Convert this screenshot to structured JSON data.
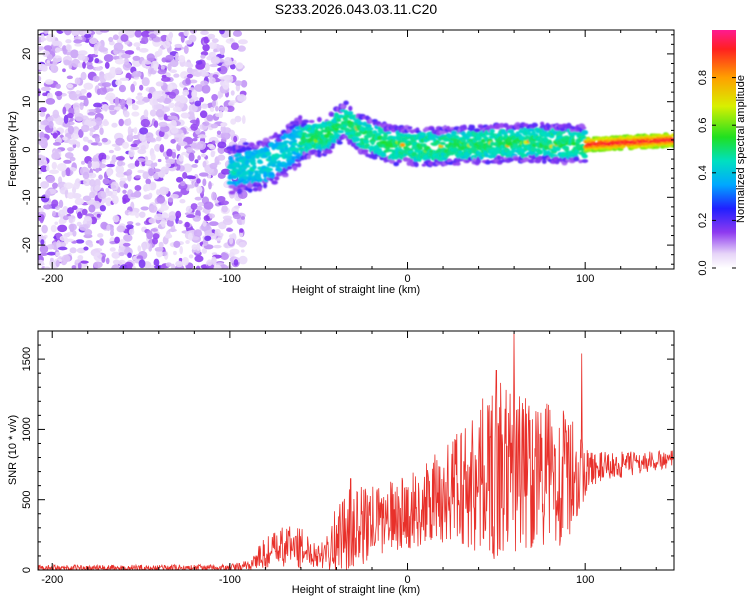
{
  "title": "S233.2026.043.03.11.C20",
  "chart_data": [
    {
      "type": "heatmap",
      "xlabel": "Height of straight line (km)",
      "ylabel": "Frequency (Hz)",
      "xlim": [
        -208,
        150
      ],
      "ylim": [
        -25,
        25
      ],
      "xticks": [
        -200,
        -100,
        0,
        100
      ],
      "yticks": [
        -20,
        -10,
        0,
        10,
        20
      ],
      "ridge_center_hz": [
        {
          "x": -95,
          "y": -4
        },
        {
          "x": -80,
          "y": -3
        },
        {
          "x": -70,
          "y": -1
        },
        {
          "x": -60,
          "y": 2
        },
        {
          "x": -45,
          "y": 3
        },
        {
          "x": -35,
          "y": 6
        },
        {
          "x": -25,
          "y": 3
        },
        {
          "x": -10,
          "y": 1
        },
        {
          "x": 10,
          "y": 0.5
        },
        {
          "x": 40,
          "y": 1
        },
        {
          "x": 70,
          "y": 1.5
        },
        {
          "x": 100,
          "y": 1
        },
        {
          "x": 150,
          "y": 2
        }
      ],
      "colorbar": {
        "label": "Normalized spectral amplitude",
        "range": [
          0,
          1
        ],
        "ticks": [
          "0.0",
          "0.2",
          "0.4",
          "0.6",
          "0.8"
        ]
      }
    },
    {
      "type": "line",
      "xlabel": "Height of straight line (km)",
      "ylabel": "SNR (10 * v/v)",
      "xlim": [
        -208,
        150
      ],
      "ylim": [
        0,
        1700
      ],
      "xticks": [
        -200,
        -100,
        0,
        100
      ],
      "yticks": [
        0,
        500,
        1000,
        1500
      ],
      "color": "#e8302a",
      "envelope": [
        {
          "x": -208,
          "base": 10,
          "spread": 25
        },
        {
          "x": -100,
          "base": 15,
          "spread": 25
        },
        {
          "x": -90,
          "base": 30,
          "spread": 40
        },
        {
          "x": -80,
          "base": 120,
          "spread": 120
        },
        {
          "x": -65,
          "base": 180,
          "spread": 170
        },
        {
          "x": -50,
          "base": 110,
          "spread": 90
        },
        {
          "x": -35,
          "base": 270,
          "spread": 300
        },
        {
          "x": -10,
          "base": 380,
          "spread": 250
        },
        {
          "x": 10,
          "base": 450,
          "spread": 300
        },
        {
          "x": 30,
          "base": 600,
          "spread": 450
        },
        {
          "x": 50,
          "base": 700,
          "spread": 650
        },
        {
          "x": 70,
          "base": 700,
          "spread": 550
        },
        {
          "x": 90,
          "base": 650,
          "spread": 500
        },
        {
          "x": 102,
          "base": 720,
          "spread": 120
        },
        {
          "x": 150,
          "base": 790,
          "spread": 60
        }
      ],
      "peak_points": [
        {
          "x": 60,
          "y": 1690
        },
        {
          "x": 50,
          "y": 1420
        },
        {
          "x": 98,
          "y": 1540
        },
        {
          "x": -32,
          "y": 650
        }
      ]
    }
  ]
}
